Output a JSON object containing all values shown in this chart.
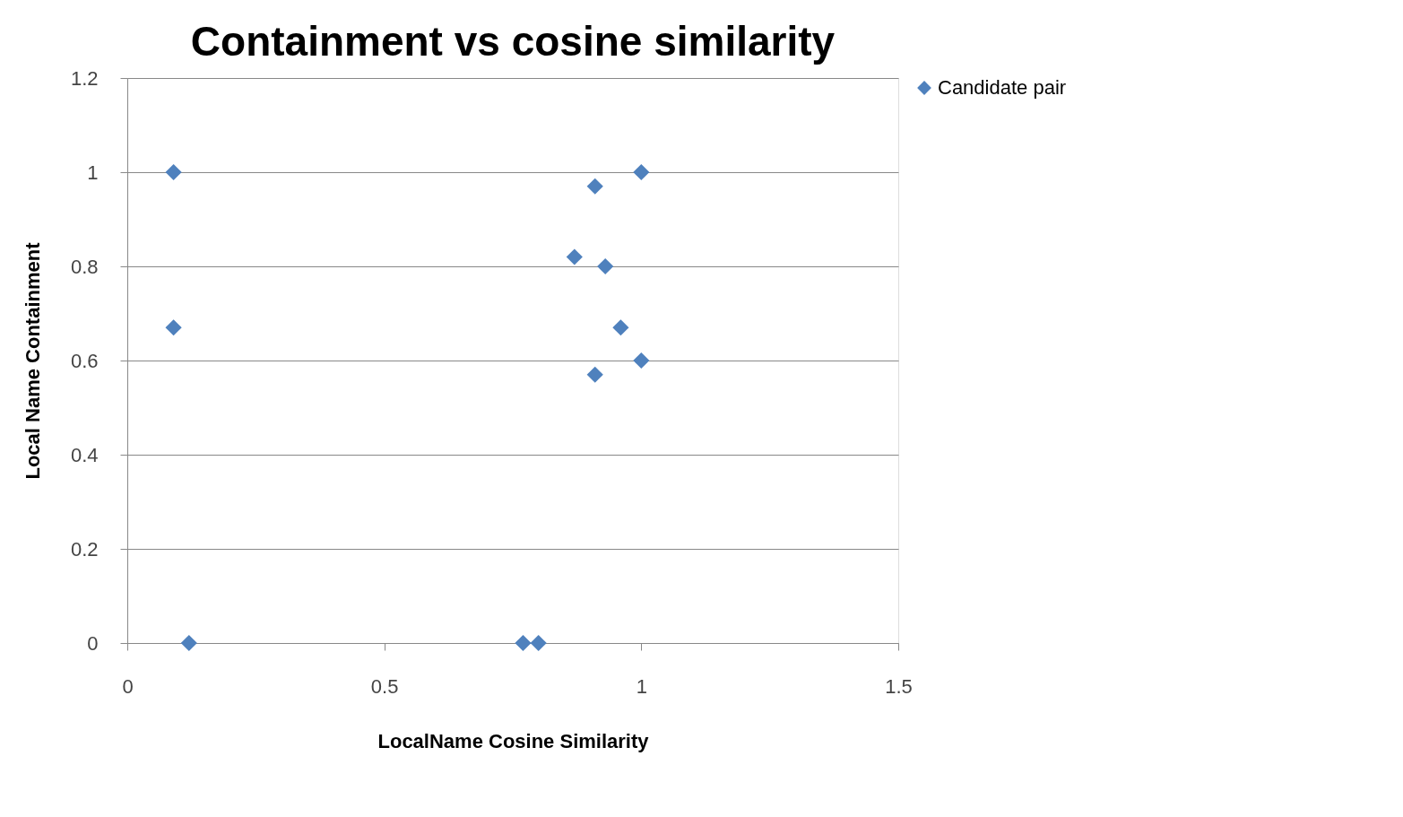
{
  "chart_data": {
    "type": "scatter",
    "title": "Containment vs cosine similarity",
    "xlabel": "LocalName Cosine Similarity",
    "ylabel": "Local Name Containment",
    "series": [
      {
        "name": "Candidate pair",
        "color": "#4f81bd",
        "x": [
          0.09,
          0.09,
          0.12,
          0.77,
          0.8,
          0.91,
          1.0,
          0.87,
          0.93,
          0.96,
          1.0,
          0.91
        ],
        "values": [
          1.0,
          0.67,
          0,
          0,
          0,
          0.97,
          1.0,
          0.82,
          0.8,
          0.67,
          0.6,
          0.57
        ]
      }
    ],
    "xlim": [
      0,
      1.5
    ],
    "xticks": [
      0,
      0.5,
      1,
      1.5
    ],
    "ylim": [
      0,
      1.2
    ],
    "yticks": [
      0,
      0.2,
      0.4,
      0.6,
      0.8,
      1,
      1.2
    ],
    "grid": "y",
    "legend": "right",
    "marker": "diamond"
  }
}
